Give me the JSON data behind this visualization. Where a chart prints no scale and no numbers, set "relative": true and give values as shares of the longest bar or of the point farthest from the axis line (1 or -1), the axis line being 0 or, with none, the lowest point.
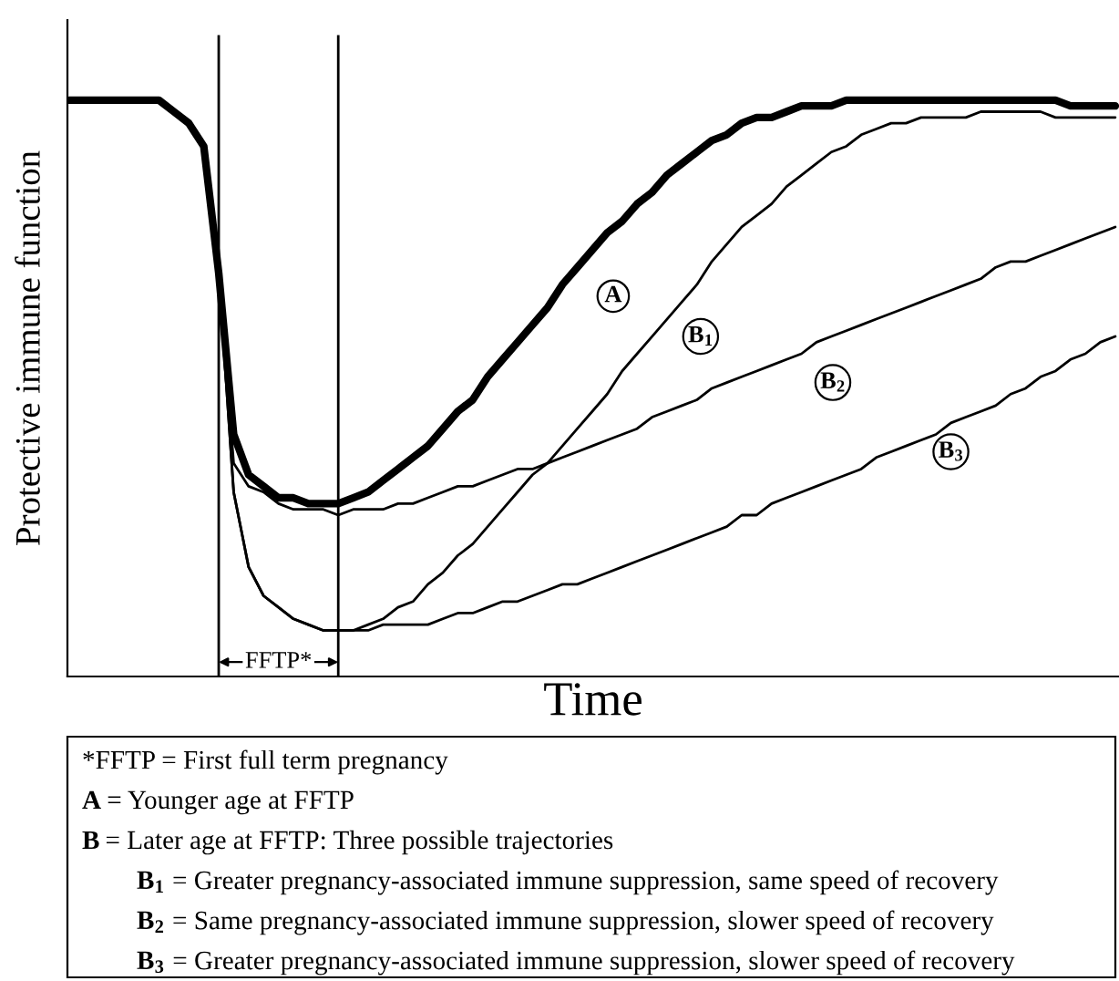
{
  "chart_data": {
    "type": "line",
    "relative": true,
    "xlabel": "Time",
    "ylabel": "Protective immune function",
    "categories": [
      null,
      null,
      null,
      null,
      null,
      null,
      null,
      null,
      null,
      null,
      null,
      null,
      null,
      null,
      null,
      null,
      null,
      null,
      null,
      null,
      null,
      null,
      null,
      null,
      null,
      null,
      null,
      null,
      null,
      null,
      null,
      null,
      null,
      null,
      null,
      null,
      null,
      null,
      null,
      null,
      null,
      null,
      null,
      null,
      null,
      null,
      null,
      null,
      null,
      null,
      null,
      null,
      null,
      null,
      null,
      null,
      null,
      null,
      null,
      null,
      null,
      null,
      null,
      null,
      null,
      null,
      null,
      null,
      null,
      null,
      null
    ],
    "series": [
      {
        "name": "A",
        "color": "#000000",
        "values": [
          1,
          1,
          1,
          1,
          1,
          1,
          1,
          0.98,
          0.96,
          0.92,
          0.7,
          0.42,
          0.35,
          0.33,
          0.31,
          0.31,
          0.3,
          0.3,
          0.3,
          0.31,
          0.32,
          0.34,
          0.36,
          0.38,
          0.4,
          0.43,
          0.46,
          0.48,
          0.52,
          0.55,
          0.58,
          0.61,
          0.64,
          0.68,
          0.71,
          0.74,
          0.77,
          0.79,
          0.82,
          0.84,
          0.87,
          0.89,
          0.91,
          0.93,
          0.94,
          0.96,
          0.97,
          0.97,
          0.98,
          0.99,
          0.99,
          0.99,
          1,
          1,
          1,
          1,
          1,
          1,
          1,
          1,
          1,
          1,
          1,
          1,
          1,
          1,
          1,
          0.99,
          0.99,
          0.99,
          0.99
        ]
      },
      {
        "name": "B$_{1}$",
        "color": "#000000",
        "values": [
          null,
          null,
          null,
          null,
          null,
          null,
          null,
          null,
          null,
          null,
          0.7,
          0.32,
          0.19,
          0.14,
          0.12,
          0.1,
          0.09,
          0.08,
          0.08,
          0.08,
          0.09,
          0.1,
          0.12,
          0.13,
          0.16,
          0.18,
          0.21,
          0.23,
          0.26,
          0.29,
          0.32,
          0.35,
          0.37,
          0.4,
          0.43,
          0.46,
          0.49,
          0.53,
          0.56,
          0.59,
          0.62,
          0.65,
          0.68,
          0.72,
          0.75,
          0.78,
          0.8,
          0.82,
          0.85,
          0.87,
          0.89,
          0.91,
          0.92,
          0.94,
          0.95,
          0.96,
          0.96,
          0.97,
          0.97,
          0.97,
          0.97,
          0.98,
          0.98,
          0.98,
          0.98,
          0.98,
          0.97,
          0.97,
          0.97,
          0.97,
          0.97
        ]
      },
      {
        "name": "B$_{2}$",
        "color": "#000000",
        "values": [
          null,
          null,
          null,
          null,
          null,
          null,
          null,
          null,
          null,
          null,
          0.7,
          0.37,
          0.33,
          0.32,
          0.3,
          0.29,
          0.29,
          0.29,
          0.28,
          0.29,
          0.29,
          0.29,
          0.3,
          0.3,
          0.31,
          0.32,
          0.33,
          0.33,
          0.34,
          0.35,
          0.36,
          0.36,
          0.37,
          0.38,
          0.39,
          0.4,
          0.41,
          0.42,
          0.43,
          0.45,
          0.46,
          0.47,
          0.48,
          0.5,
          0.51,
          0.52,
          0.53,
          0.54,
          0.55,
          0.56,
          0.58,
          0.59,
          0.6,
          0.61,
          0.62,
          0.63,
          0.64,
          0.65,
          0.66,
          0.67,
          0.68,
          0.69,
          0.71,
          0.72,
          0.72,
          0.73,
          0.74,
          0.75,
          0.76,
          0.77,
          0.78
        ]
      },
      {
        "name": "B$_{3}$",
        "color": "#000000",
        "values": [
          null,
          null,
          null,
          null,
          null,
          null,
          null,
          null,
          null,
          null,
          0.7,
          0.32,
          0.19,
          0.14,
          0.12,
          0.1,
          0.09,
          0.08,
          0.08,
          0.08,
          0.08,
          0.09,
          0.09,
          0.09,
          0.09,
          0.1,
          0.11,
          0.11,
          0.12,
          0.13,
          0.13,
          0.14,
          0.15,
          0.16,
          0.16,
          0.17,
          0.18,
          0.19,
          0.2,
          0.21,
          0.22,
          0.23,
          0.24,
          0.25,
          0.26,
          0.28,
          0.28,
          0.3,
          0.31,
          0.32,
          0.33,
          0.34,
          0.35,
          0.36,
          0.38,
          0.39,
          0.4,
          0.41,
          0.42,
          0.44,
          0.45,
          0.46,
          0.47,
          0.49,
          0.5,
          0.52,
          0.53,
          0.55,
          0.56,
          0.58,
          0.59
        ]
      }
    ],
    "tick_labels": false,
    "annotations": [
      "FFTP*",
      "*FFTP = First full term pregnancy",
      "A = Younger age at FFTP",
      "B = Later age at FFTP: Three possible trajectories",
      "B$_{1}$ = Greater pregnancy-associated immune suppression, same speed of recovery",
      "B$_{2}$ = Same pregnancy-associated immune suppression, slower speed of recovery",
      "B$_{3}$ = Greater pregnancy-associated immune suppression, slower speed of recovery"
    ]
  }
}
